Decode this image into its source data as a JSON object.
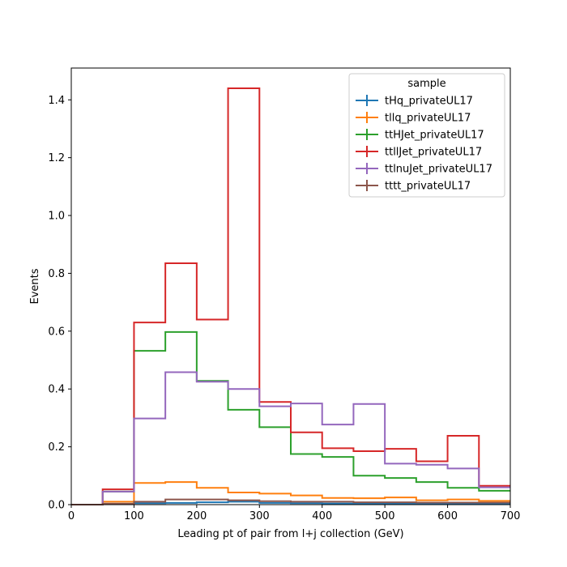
{
  "chart_data": {
    "type": "line",
    "title": "",
    "xlabel": "Leading pt of pair from l+j collection (GeV)",
    "ylabel": "Events",
    "xlim": [
      0,
      700
    ],
    "ylim": [
      0,
      1.51
    ],
    "grid": false,
    "legend": {
      "title": "sample",
      "placement": "top-right"
    },
    "xticks": [
      0,
      100,
      200,
      300,
      400,
      500,
      600,
      700
    ],
    "yticks": [
      0.0,
      0.2,
      0.4,
      0.6,
      0.8,
      1.0,
      1.2,
      1.4
    ],
    "bin_edges": [
      0,
      50,
      100,
      150,
      200,
      250,
      300,
      350,
      400,
      450,
      500,
      550,
      600,
      650,
      700
    ],
    "series": [
      {
        "name": "tHq_privateUL17",
        "color": "#1f77b4",
        "values": [
          0,
          0.003,
          0.005,
          0.006,
          0.008,
          0.01,
          0.006,
          0.005,
          0.004,
          0.003,
          0.003,
          0.002,
          0.002,
          0.003
        ]
      },
      {
        "name": "tllq_privateUL17",
        "color": "#ff7f0e",
        "values": [
          0,
          0.01,
          0.075,
          0.078,
          0.058,
          0.042,
          0.038,
          0.032,
          0.023,
          0.022,
          0.025,
          0.015,
          0.018,
          0.013
        ]
      },
      {
        "name": "ttHJet_privateUL17",
        "color": "#2ca02c",
        "values": [
          0,
          0.045,
          0.532,
          0.597,
          0.428,
          0.328,
          0.268,
          0.175,
          0.165,
          0.1,
          0.092,
          0.078,
          0.058,
          0.048
        ]
      },
      {
        "name": "ttllJet_privateUL17",
        "color": "#d62728",
        "values": [
          0,
          0.053,
          0.63,
          0.835,
          0.64,
          1.44,
          0.355,
          0.25,
          0.195,
          0.185,
          0.193,
          0.15,
          0.238,
          0.065
        ]
      },
      {
        "name": "ttlnuJet_privateUL17",
        "color": "#9467bd",
        "values": [
          0,
          0.045,
          0.298,
          0.458,
          0.425,
          0.4,
          0.34,
          0.35,
          0.277,
          0.348,
          0.142,
          0.138,
          0.125,
          0.06
        ]
      },
      {
        "name": "tttt_privateUL17",
        "color": "#8c564b",
        "values": [
          0,
          0.003,
          0.01,
          0.018,
          0.018,
          0.015,
          0.012,
          0.01,
          0.01,
          0.008,
          0.008,
          0.007,
          0.007,
          0.007
        ]
      }
    ]
  }
}
